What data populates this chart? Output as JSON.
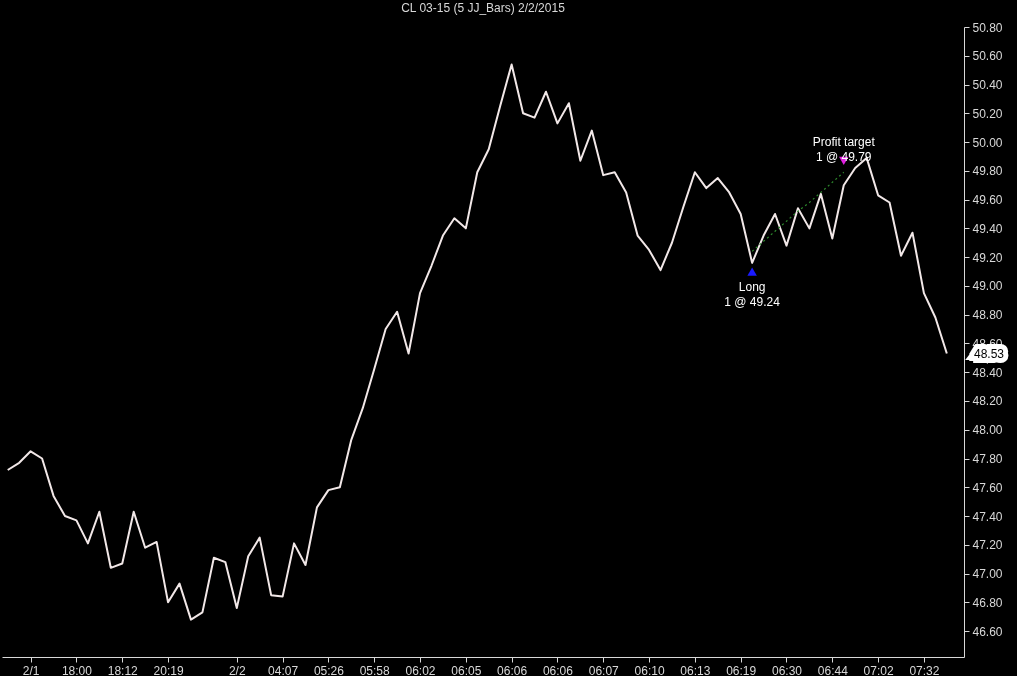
{
  "chart_data": {
    "type": "line",
    "title": "CL 03-15 (5 JJ_Bars)  2/2/2015",
    "categories": [
      null,
      null,
      "2/1",
      null,
      null,
      null,
      "18:00",
      null,
      null,
      null,
      "18:12",
      null,
      null,
      null,
      "20:19",
      null,
      null,
      null,
      null,
      null,
      "2/2",
      null,
      null,
      null,
      "04:07",
      null,
      null,
      null,
      "05:26",
      null,
      null,
      null,
      "05:58",
      null,
      null,
      null,
      "06:02",
      null,
      null,
      null,
      "06:05",
      null,
      null,
      null,
      "06:06",
      null,
      null,
      null,
      "06:06",
      null,
      null,
      null,
      "06:07",
      null,
      null,
      null,
      "06:10",
      null,
      null,
      null,
      "06:13",
      null,
      null,
      null,
      "06:19",
      null,
      null,
      null,
      "06:30",
      null,
      null,
      null,
      "06:44",
      null,
      null,
      null,
      "07:02",
      null,
      null,
      null,
      "07:32",
      null,
      null,
      null
    ],
    "ylim": [
      46.42,
      50.8
    ],
    "yticks": [
      {
        "value": 46.6,
        "label": "46.60"
      },
      {
        "value": 46.8,
        "label": "46.80"
      },
      {
        "value": 47.0,
        "label": "47.00"
      },
      {
        "value": 47.2,
        "label": "47.20"
      },
      {
        "value": 47.4,
        "label": "47.40"
      },
      {
        "value": 47.6,
        "label": "47.60"
      },
      {
        "value": 47.8,
        "label": "47.80"
      },
      {
        "value": 48.0,
        "label": "48.00"
      },
      {
        "value": 48.2,
        "label": "48.20"
      },
      {
        "value": 48.4,
        "label": "48.40"
      },
      {
        "value": 48.6,
        "label": "48.60"
      },
      {
        "value": 48.8,
        "label": "48.80"
      },
      {
        "value": 49.0,
        "label": "49.00"
      },
      {
        "value": 49.2,
        "label": "49.20"
      },
      {
        "value": 49.4,
        "label": "49.40"
      },
      {
        "value": 49.6,
        "label": "49.60"
      },
      {
        "value": 49.8,
        "label": "49.80"
      },
      {
        "value": 50.0,
        "label": "50.00"
      },
      {
        "value": 50.2,
        "label": "50.20"
      },
      {
        "value": 50.4,
        "label": "50.40"
      },
      {
        "value": 50.6,
        "label": "50.60"
      },
      {
        "value": 50.8,
        "label": "50.80"
      }
    ],
    "line_style": "solid",
    "series": [
      {
        "color": "#f2e8e8",
        "values": [
          47.72,
          47.77,
          47.85,
          47.8,
          47.54,
          47.4,
          47.37,
          47.21,
          47.43,
          47.04,
          47.07,
          47.43,
          47.18,
          47.22,
          46.8,
          46.93,
          46.68,
          46.73,
          47.11,
          47.08,
          46.76,
          47.12,
          47.25,
          46.85,
          46.84,
          47.21,
          47.06,
          47.46,
          47.58,
          47.6,
          47.93,
          48.15,
          48.42,
          48.7,
          48.82,
          48.53,
          48.95,
          49.14,
          49.35,
          49.47,
          49.4,
          49.79,
          49.95,
          50.25,
          50.54,
          50.2,
          50.17,
          50.35,
          50.13,
          50.27,
          49.87,
          50.08,
          49.77,
          49.79,
          49.65,
          49.35,
          49.25,
          49.11,
          49.3,
          49.55,
          49.79,
          49.68,
          49.75,
          49.65,
          49.5,
          49.16,
          49.35,
          49.5,
          49.28,
          49.54,
          49.4,
          49.64,
          49.33,
          49.7,
          49.82,
          49.89,
          49.63,
          49.58,
          49.21,
          49.37,
          48.95,
          48.78,
          48.53,
          null
        ]
      },
      {
        "type": "line",
        "color": "#2e8b2e",
        "line_style": "dotted",
        "values": [
          null,
          null,
          null,
          null,
          null,
          null,
          null,
          null,
          null,
          null,
          null,
          null,
          null,
          null,
          null,
          null,
          null,
          null,
          null,
          null,
          null,
          null,
          null,
          null,
          null,
          null,
          null,
          null,
          null,
          null,
          null,
          null,
          null,
          null,
          null,
          null,
          null,
          null,
          null,
          null,
          null,
          null,
          null,
          null,
          null,
          null,
          null,
          null,
          null,
          null,
          null,
          null,
          null,
          null,
          null,
          null,
          null,
          null,
          null,
          null,
          null,
          null,
          null,
          null,
          null,
          49.24,
          49.31,
          49.38,
          49.45,
          49.52,
          49.58,
          49.65,
          49.72,
          49.79,
          null,
          null,
          null,
          null,
          null,
          null,
          null,
          null,
          null,
          null
        ]
      },
      {
        "type": "scatter",
        "color": "#1a1aff",
        "marker": "triangle",
        "values": [
          null,
          null,
          null,
          null,
          null,
          null,
          null,
          null,
          null,
          null,
          null,
          null,
          null,
          null,
          null,
          null,
          null,
          null,
          null,
          null,
          null,
          null,
          null,
          null,
          null,
          null,
          null,
          null,
          null,
          null,
          null,
          null,
          null,
          null,
          null,
          null,
          null,
          null,
          null,
          null,
          null,
          null,
          null,
          null,
          null,
          null,
          null,
          null,
          null,
          null,
          null,
          null,
          null,
          null,
          null,
          null,
          null,
          null,
          null,
          null,
          null,
          null,
          null,
          null,
          null,
          49.1,
          null,
          null,
          null,
          null,
          null,
          null,
          null,
          null,
          null,
          null,
          null,
          null,
          null,
          null,
          null,
          null,
          null,
          null
        ]
      },
      {
        "type": "scatter",
        "color": "#e020e0",
        "marker": "triangle-down",
        "values": [
          null,
          null,
          null,
          null,
          null,
          null,
          null,
          null,
          null,
          null,
          null,
          null,
          null,
          null,
          null,
          null,
          null,
          null,
          null,
          null,
          null,
          null,
          null,
          null,
          null,
          null,
          null,
          null,
          null,
          null,
          null,
          null,
          null,
          null,
          null,
          null,
          null,
          null,
          null,
          null,
          null,
          null,
          null,
          null,
          null,
          null,
          null,
          null,
          null,
          null,
          null,
          null,
          null,
          null,
          null,
          null,
          null,
          null,
          null,
          null,
          null,
          null,
          null,
          null,
          null,
          null,
          null,
          null,
          null,
          null,
          null,
          null,
          null,
          49.87,
          null,
          null,
          null,
          null,
          null,
          null,
          null,
          null,
          null,
          null
        ]
      }
    ],
    "annotations": [
      "Long\n1 @ 49.24",
      "Profit target\n1 @ 49.79",
      "48.53"
    ]
  }
}
